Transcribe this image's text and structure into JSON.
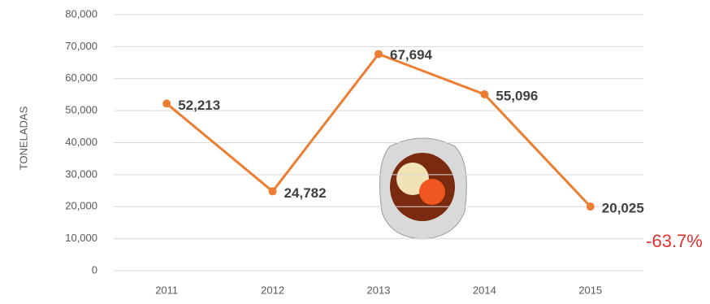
{
  "chart_data": {
    "type": "line",
    "y_label": "TONELADAS",
    "categories": [
      "2011",
      "2012",
      "2013",
      "2014",
      "2015"
    ],
    "series": [
      {
        "name": "Toneladas",
        "color": "#ed7d31",
        "values": [
          52213,
          24782,
          67694,
          55096,
          20025
        ],
        "value_labels": [
          "52,213",
          "24,782",
          "67,694",
          "55,096",
          "20,025"
        ]
      }
    ],
    "ylim": [
      0,
      80000
    ],
    "yticks": [
      0,
      {
        "value": 10000,
        "label": "10,000"
      },
      {
        "value": 20000,
        "label": "20,000"
      },
      {
        "value": 30000,
        "label": "30,000"
      },
      {
        "value": 40000,
        "label": "40,000"
      },
      {
        "value": 50000,
        "label": "50,000"
      },
      {
        "value": 60000,
        "label": "60,000"
      },
      {
        "value": 70000,
        "label": "70,000"
      },
      {
        "value": 80000,
        "label": "80,000"
      }
    ],
    "grid": true,
    "annotation": "-63.7%"
  }
}
